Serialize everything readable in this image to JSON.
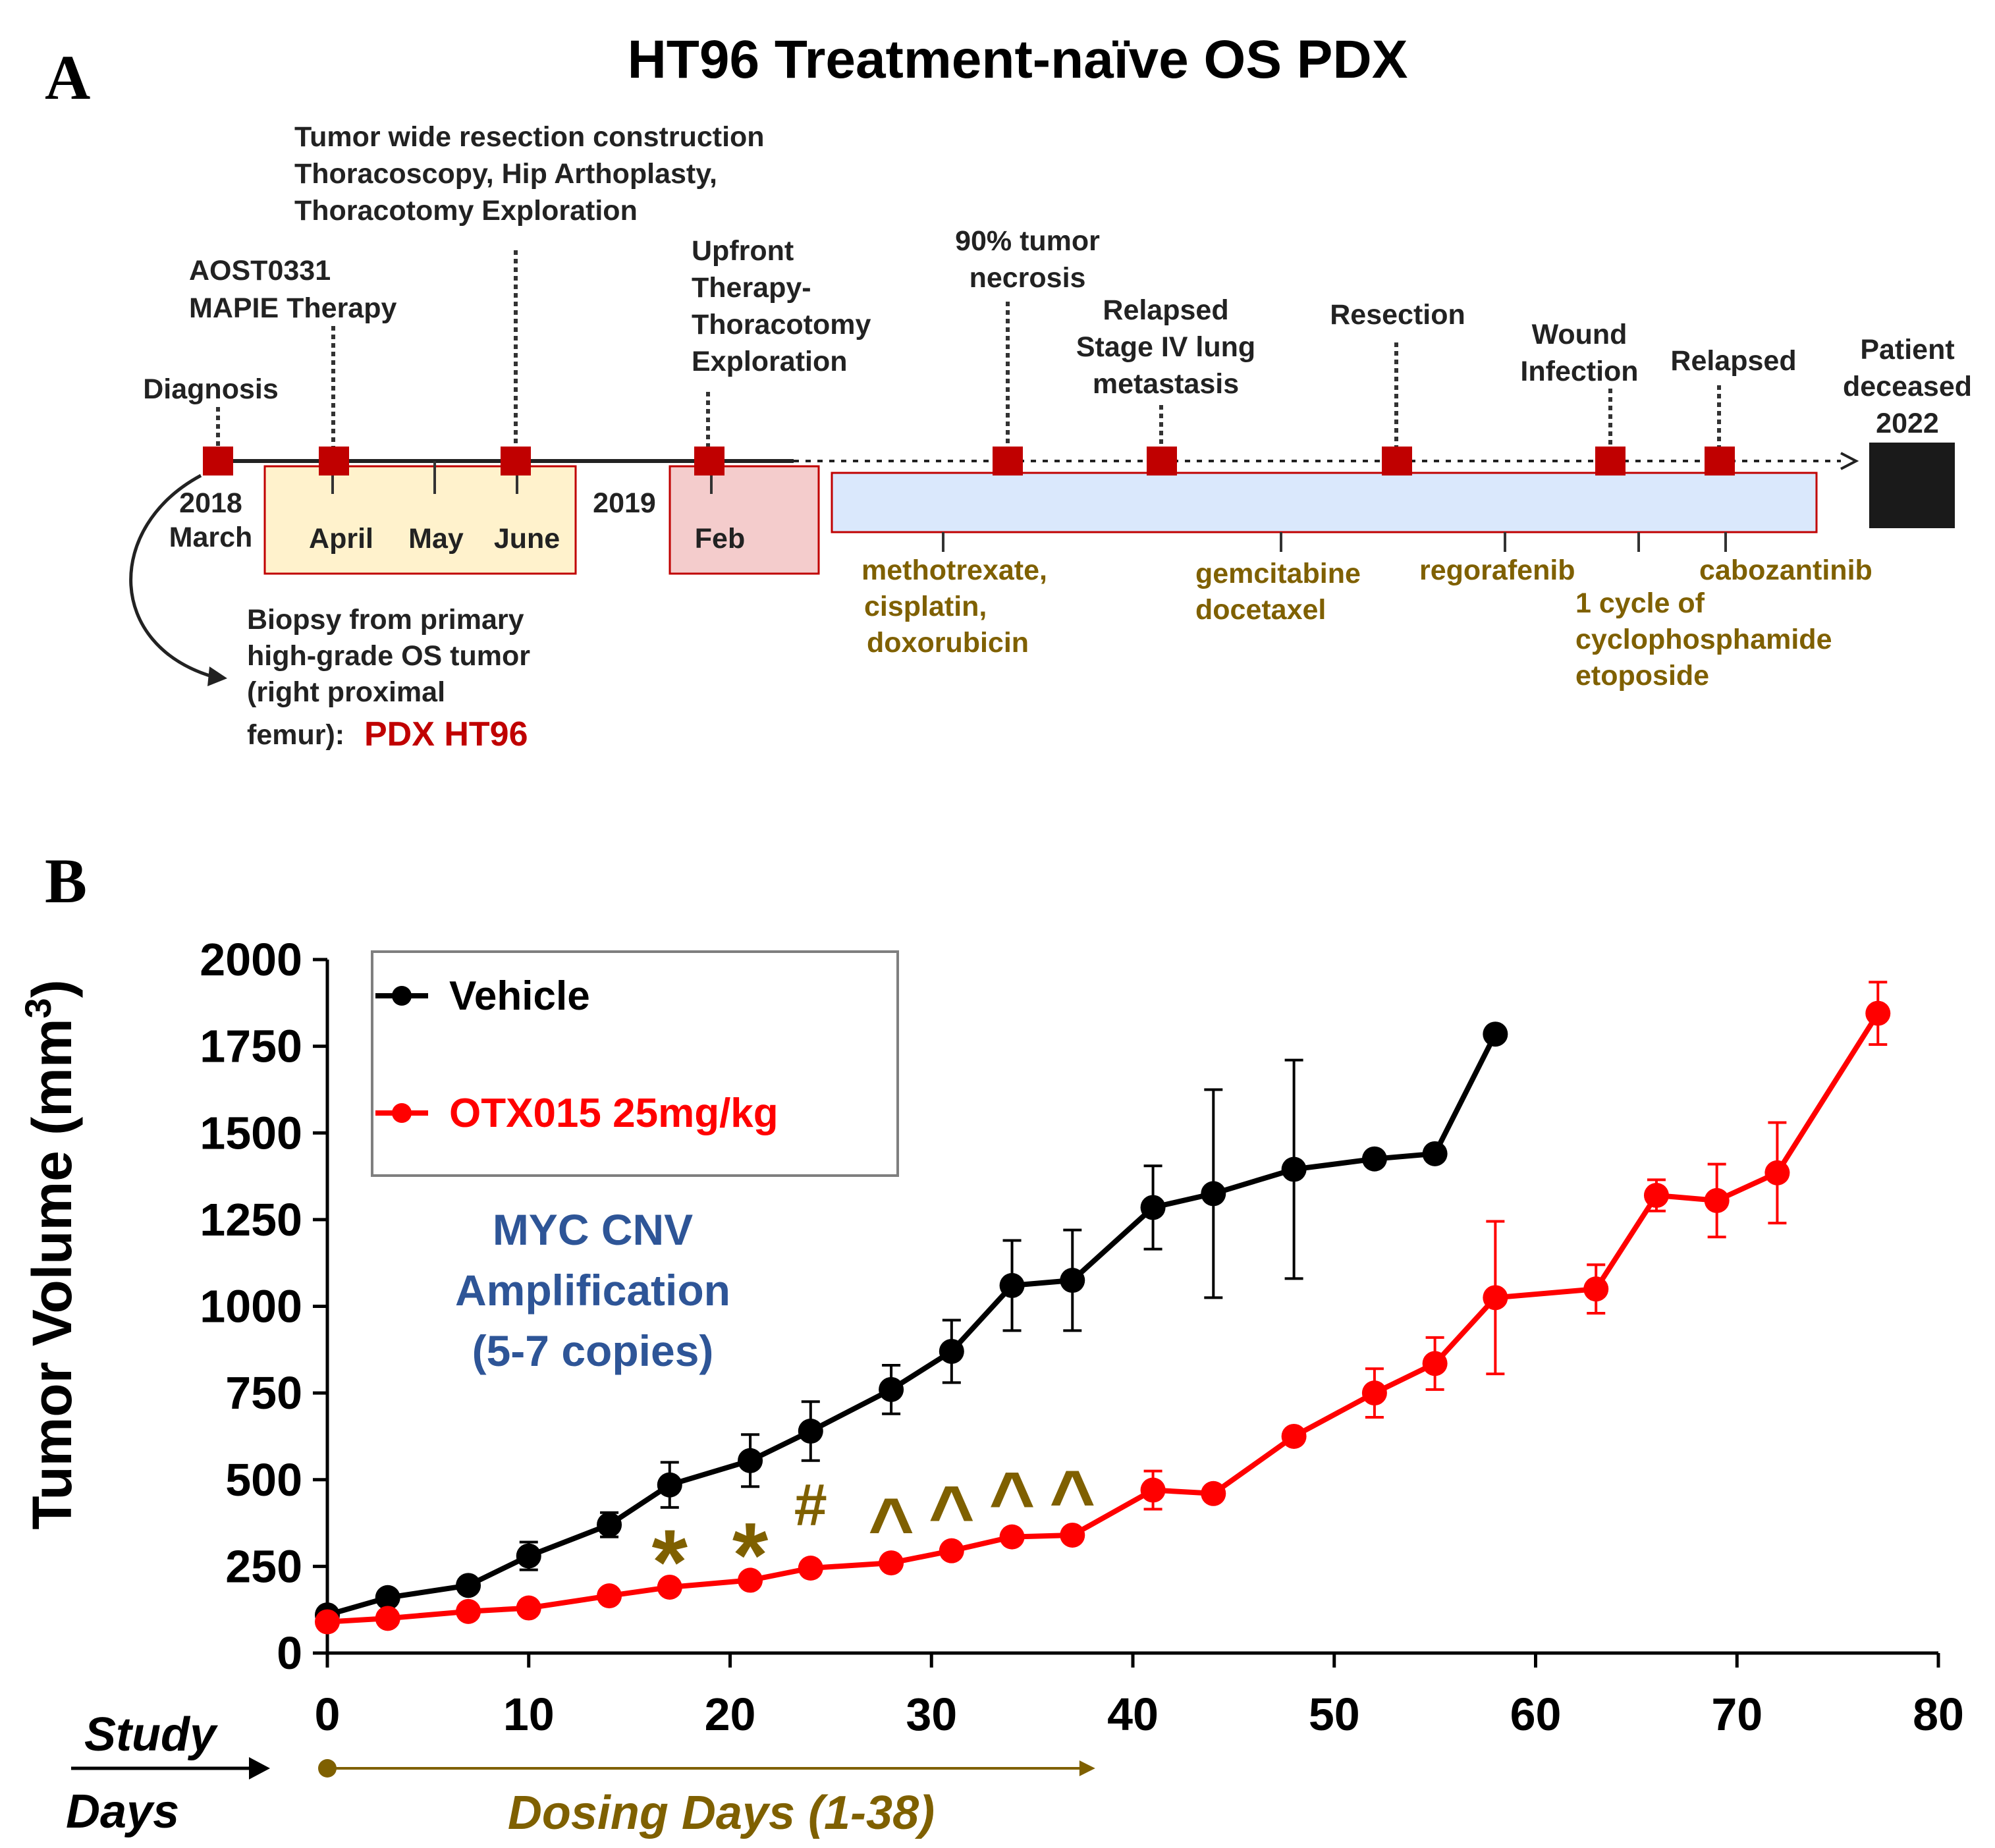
{
  "panel_a": {
    "letter": "A",
    "title": "HT96 Treatment-naïve OS PDX",
    "events": {
      "diagnosis": "Diagnosis",
      "aost": [
        "AOST0331",
        "MAPIE  Therapy"
      ],
      "resection": [
        "Tumor wide resection construction",
        "Thoracoscopy, Hip Arthoplasty,",
        "Thoracotomy Exploration"
      ],
      "upfront": [
        "Upfront",
        "Therapy-",
        "Thoracotomy",
        "Exploration"
      ],
      "necrosis": [
        "90% tumor",
        "necrosis"
      ],
      "relapsed_stage": [
        "Relapsed",
        "Stage IV lung",
        "metastasis"
      ],
      "resection2": "Resection",
      "wound": [
        "Wound",
        "Infection"
      ],
      "relapsed": "Relapsed",
      "deceased": [
        "Patient",
        "deceased",
        "2022"
      ]
    },
    "dates": {
      "y2018": "2018",
      "march": "March",
      "april": "April",
      "may": "May",
      "june": "June",
      "y2019": "2019",
      "feb": "Feb"
    },
    "drugs": {
      "mcd": [
        "methotrexate,",
        "cisplatin,",
        "doxorubicin"
      ],
      "gd": [
        "gemcitabine",
        "docetaxel"
      ],
      "rego": "regorafenib",
      "cyclo": [
        "1 cycle of",
        "cyclophosphamide",
        "etoposide"
      ],
      "cabo": "cabozantinib"
    },
    "biopsy": [
      "Biopsy from primary",
      "high-grade OS tumor",
      "(right proximal"
    ],
    "biopsy_last": "femur):",
    "pdx_label": "PDX HT96",
    "colors": {
      "marker": "#c00000",
      "drug_text": "#7f6000",
      "yellow_box": "#fff2cc",
      "pink_box": "#f4cccc",
      "blue_box": "#dae8fc",
      "pdx": "#c00000"
    }
  },
  "panel_b": {
    "letter": "B",
    "annotation": [
      "MYC CNV",
      "Amplification",
      "(5-7 copies)"
    ],
    "annotation_color": "#2e5597",
    "study_days": [
      "Study",
      "Days"
    ],
    "dosing_label": "Dosing Days (1-38)",
    "dosing_range": [
      0,
      38
    ],
    "dosing_color": "#7f6000"
  },
  "chart_data": {
    "type": "line",
    "title": "",
    "xlabel": "Study Days",
    "ylabel": "Tumor Volume (mm3)",
    "xlim": [
      0,
      80
    ],
    "ylim": [
      0,
      2000
    ],
    "xticks": [
      0,
      10,
      20,
      30,
      40,
      50,
      60,
      70,
      80
    ],
    "yticks": [
      0,
      250,
      500,
      750,
      1000,
      1250,
      1500,
      1750,
      2000
    ],
    "legend_position": "top-left",
    "series": [
      {
        "name": "Vehicle",
        "color": "#000000",
        "x": [
          0,
          3,
          7,
          10,
          14,
          17,
          21,
          24,
          28,
          31,
          34,
          37,
          41,
          44,
          48,
          52,
          55,
          58
        ],
        "y": [
          110,
          160,
          195,
          280,
          370,
          485,
          555,
          640,
          760,
          870,
          1060,
          1075,
          1285,
          1325,
          1395,
          1425,
          1440,
          1785
        ],
        "err": [
          0,
          0,
          0,
          40,
          35,
          65,
          75,
          85,
          70,
          90,
          130,
          145,
          120,
          300,
          315,
          0,
          0,
          0
        ]
      },
      {
        "name": "OTX015 25mg/kg",
        "color": "#ff0000",
        "x": [
          0,
          3,
          7,
          10,
          14,
          17,
          21,
          24,
          28,
          31,
          34,
          37,
          41,
          44,
          48,
          52,
          55,
          63,
          58,
          66,
          69,
          72,
          77
        ],
        "y": [
          90,
          100,
          120,
          130,
          165,
          190,
          210,
          245,
          260,
          295,
          335,
          340,
          470,
          460,
          625,
          750,
          835,
          1050,
          1025,
          1320,
          1305,
          1385,
          1845
        ],
        "err": [
          0,
          0,
          0,
          0,
          0,
          0,
          0,
          0,
          0,
          0,
          0,
          0,
          55,
          0,
          0,
          70,
          75,
          70,
          220,
          45,
          105,
          145,
          90
        ]
      }
    ],
    "significance": [
      {
        "x": 17,
        "label": "*"
      },
      {
        "x": 21,
        "label": "*"
      },
      {
        "x": 24,
        "label": "#"
      },
      {
        "x": 28,
        "label": "^"
      },
      {
        "x": 31,
        "label": "^"
      },
      {
        "x": 34,
        "label": "^"
      },
      {
        "x": 37,
        "label": "^"
      }
    ]
  }
}
